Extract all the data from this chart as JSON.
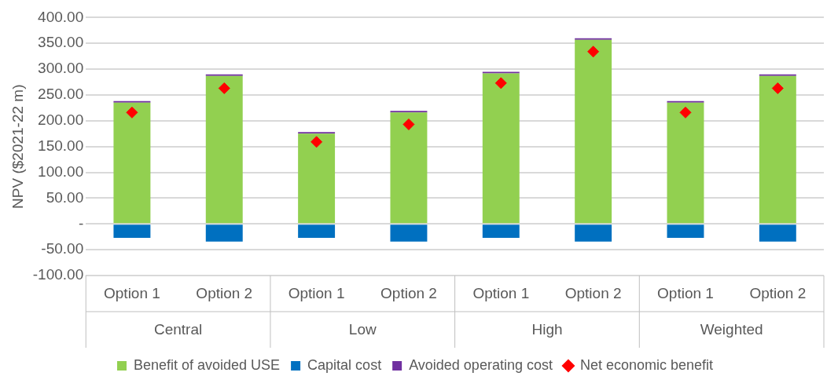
{
  "chart_data": {
    "type": "bar",
    "stacked": true,
    "ylabel": "NPV ($2021-22 m)",
    "categories": [
      "Option 1",
      "Option 2",
      "Option 1",
      "Option 2",
      "Option 1",
      "Option 2",
      "Option 1",
      "Option 2"
    ],
    "annotations": [
      "Central",
      "Low",
      "High",
      "Weighted"
    ],
    "series": [
      {
        "name": "Benefit of avoided USE",
        "color": "#92d050",
        "values": [
          235,
          287,
          175,
          216,
          292,
          357,
          235,
          287
        ]
      },
      {
        "name": "Capital cost",
        "color": "#0070c0",
        "values": [
          -27,
          -34,
          -27,
          -34,
          -27,
          -34,
          -27,
          -34
        ]
      },
      {
        "name": "Avoided operating cost",
        "color": "#7030a0",
        "values": [
          3,
          3,
          3,
          3,
          3,
          3,
          3,
          3
        ]
      },
      {
        "name": "Net economic benefit",
        "type": "scatter",
        "marker": "diamond",
        "color": "#ff0000",
        "values": [
          216,
          263,
          159,
          193,
          273,
          334,
          216,
          263
        ]
      }
    ],
    "ylim": [
      -100,
      400
    ],
    "yticks": [
      {
        "value": -100,
        "label": "-100.00"
      },
      {
        "value": -50,
        "label": "-50.00"
      },
      {
        "value": 0,
        "label": "-"
      },
      {
        "value": 50,
        "label": "50.00"
      },
      {
        "value": 100,
        "label": "100.00"
      },
      {
        "value": 150,
        "label": "150.00"
      },
      {
        "value": 200,
        "label": "200.00"
      },
      {
        "value": 250,
        "label": "250.00"
      },
      {
        "value": 300,
        "label": "300.00"
      },
      {
        "value": 350,
        "label": "350.00"
      },
      {
        "value": 400,
        "label": "400.00"
      }
    ],
    "grid": "y",
    "legend": "bottom"
  }
}
